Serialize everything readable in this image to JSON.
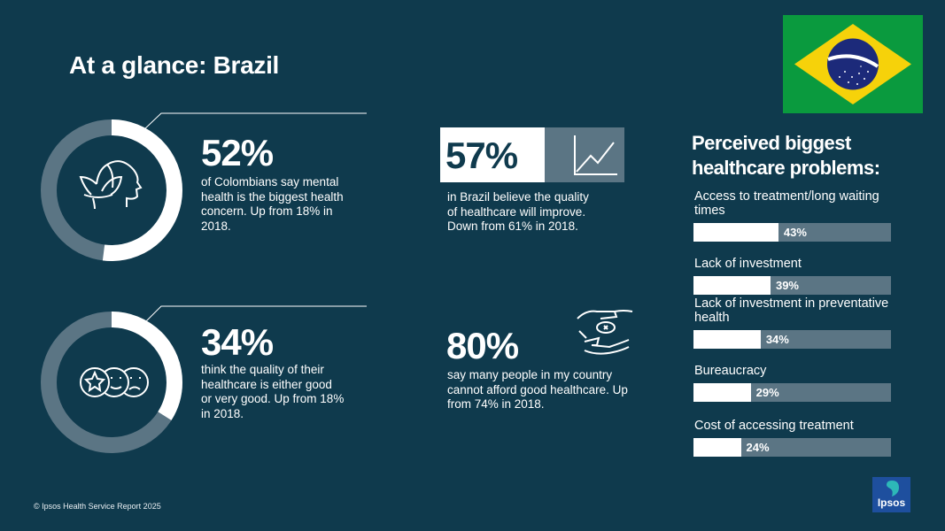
{
  "title": "At a glance: Brazil",
  "colors": {
    "background": "#0f3a4d",
    "accent": "#ffffff",
    "muted": "#5b7584"
  },
  "stats": {
    "mental_health": {
      "value": "52%",
      "fraction": 0.52,
      "icon": "lotus-head-icon",
      "text": [
        "of Colombians say mental",
        "health is the biggest health",
        "concern. Up from 18% in",
        "2018."
      ]
    },
    "quality_rating": {
      "value": "34%",
      "fraction": 0.34,
      "icon": "rating-faces-icon",
      "text": [
        "think the quality of their",
        "healthcare is either good",
        "or very good. Up from 18%",
        "in 2018."
      ]
    },
    "improve": {
      "value": "57%",
      "icon": "trend-up-chart-icon",
      "text": [
        "in Brazil believe the quality",
        "of healthcare will improve.",
        "Down from 61% in 2018."
      ]
    },
    "afford": {
      "value": "80%",
      "icon": "hands-money-icon",
      "text": [
        "say many people in my country",
        "cannot afford good healthcare. Up",
        "from 74% in 2018."
      ]
    }
  },
  "chart_data": {
    "type": "bar",
    "title": "Perceived biggest healthcare problems:",
    "categories": [
      "Access to treatment/long waiting times",
      "Lack of investment",
      "Lack of investment in preventative health",
      "Bureaucracy",
      "Cost of accessing treatment"
    ],
    "label_lines": [
      [
        "Access to treatment/long waiting",
        "times"
      ],
      [
        "Lack of investment"
      ],
      [
        "Lack of investment in preventative",
        "health"
      ],
      [
        "Bureaucracy"
      ],
      [
        "Cost of accessing treatment"
      ]
    ],
    "values": [
      43,
      39,
      34,
      29,
      24
    ],
    "value_labels": [
      "43%",
      "39%",
      "34%",
      "29%",
      "24%"
    ],
    "ylim": [
      0,
      100
    ]
  },
  "footer": "© Ipsos Health Service Report 2025",
  "logo_text": "Ipsos"
}
